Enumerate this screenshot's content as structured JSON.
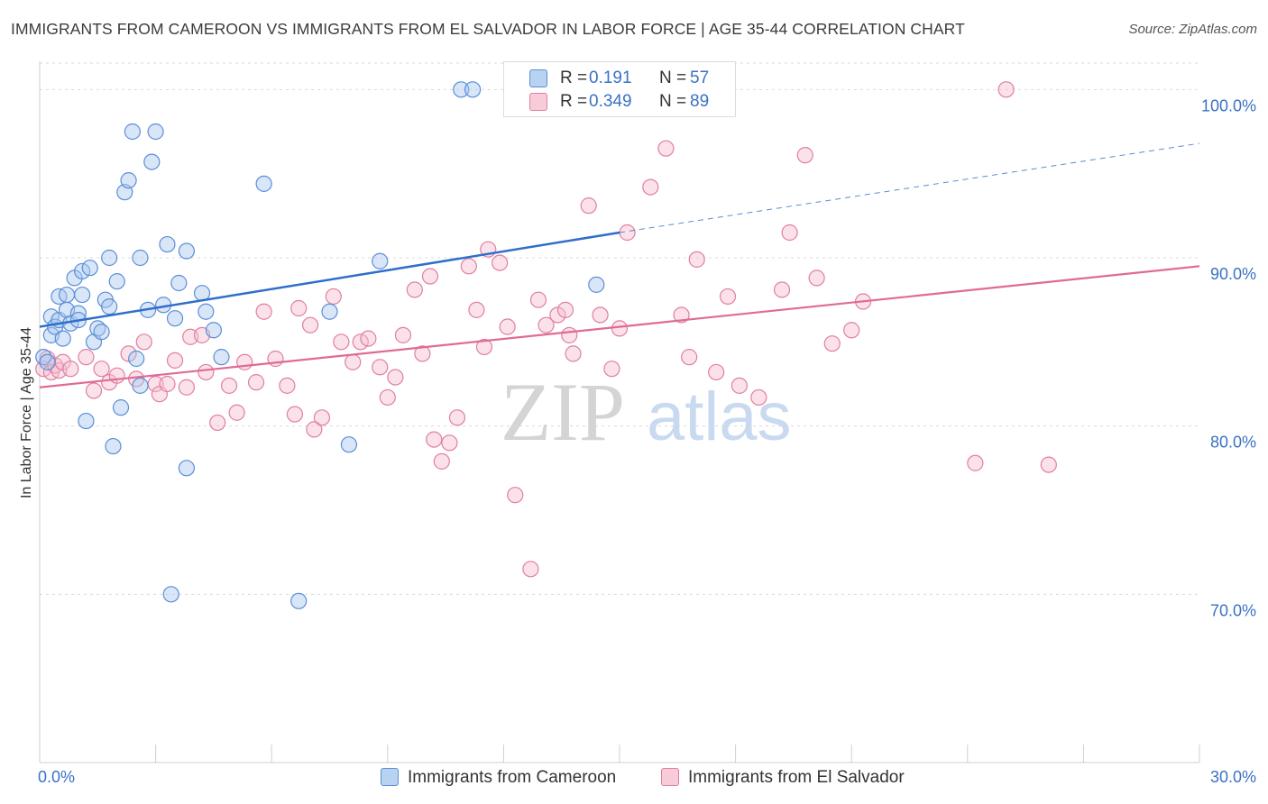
{
  "colors": {
    "blue_fill": "#a8c8f0",
    "blue_stroke": "#5b8fd6",
    "blue_line": "#2f6fc9",
    "pink_fill": "#f6bfd0",
    "pink_stroke": "#e07fa0",
    "pink_line": "#e06a95",
    "axis_text": "#3a72c4",
    "grid": "#d9d9d9"
  },
  "header": {
    "title": "IMMIGRANTS FROM CAMEROON VS IMMIGRANTS FROM EL SALVADOR IN LABOR FORCE | AGE 35-44 CORRELATION CHART",
    "source": "Source: ZipAtlas.com"
  },
  "watermark": {
    "zip": "ZIP",
    "atlas": "atlas"
  },
  "legend_top": [
    {
      "r_label": "R =",
      "r_value": "0.191",
      "n_label": "N =",
      "n_value": "57"
    },
    {
      "r_label": "R =",
      "r_value": "0.349",
      "n_label": "N =",
      "n_value": "89"
    }
  ],
  "chart_data": {
    "type": "scatter",
    "title": "IMMIGRANTS FROM CAMEROON VS IMMIGRANTS FROM EL SALVADOR IN LABOR FORCE | AGE 35-44 CORRELATION CHART",
    "xlabel": "",
    "ylabel": "In Labor Force | Age 35-44",
    "xlim": [
      0,
      30
    ],
    "ylim": [
      60,
      102
    ],
    "x_tick_labels": [
      "0.0%",
      "30.0%"
    ],
    "y_ticks": [
      70,
      80,
      90,
      100
    ],
    "y_tick_labels": [
      "70.0%",
      "80.0%",
      "90.0%",
      "100.0%"
    ],
    "grid": true,
    "legend_position": "bottom",
    "series": [
      {
        "name": "Immigrants from Cameroon",
        "R": 0.191,
        "N": 57,
        "trend": {
          "x0": 0.0,
          "y0": 85.9,
          "x1": 15.0,
          "y1": 91.5,
          "dashed_to_x": 30.0,
          "dashed_to_y": 96.8
        },
        "points": [
          [
            0.1,
            84.1
          ],
          [
            0.2,
            83.8
          ],
          [
            0.3,
            85.4
          ],
          [
            0.3,
            86.5
          ],
          [
            0.4,
            85.9
          ],
          [
            0.5,
            87.7
          ],
          [
            0.5,
            86.3
          ],
          [
            0.6,
            85.2
          ],
          [
            0.7,
            87.8
          ],
          [
            0.7,
            86.9
          ],
          [
            0.8,
            86.1
          ],
          [
            0.9,
            88.8
          ],
          [
            1.0,
            86.7
          ],
          [
            1.0,
            86.3
          ],
          [
            1.1,
            87.8
          ],
          [
            1.1,
            89.2
          ],
          [
            1.2,
            80.3
          ],
          [
            1.3,
            89.4
          ],
          [
            1.4,
            85.0
          ],
          [
            1.5,
            85.8
          ],
          [
            1.6,
            85.6
          ],
          [
            1.7,
            87.5
          ],
          [
            1.8,
            90.0
          ],
          [
            1.8,
            87.1
          ],
          [
            1.9,
            78.8
          ],
          [
            2.0,
            88.6
          ],
          [
            2.1,
            81.1
          ],
          [
            2.2,
            93.9
          ],
          [
            2.3,
            94.6
          ],
          [
            2.4,
            97.5
          ],
          [
            2.5,
            84.0
          ],
          [
            2.6,
            82.4
          ],
          [
            2.6,
            90.0
          ],
          [
            2.8,
            86.9
          ],
          [
            2.9,
            95.7
          ],
          [
            3.0,
            97.5
          ],
          [
            3.2,
            87.2
          ],
          [
            3.3,
            90.8
          ],
          [
            3.4,
            70.0
          ],
          [
            3.5,
            86.4
          ],
          [
            3.6,
            88.5
          ],
          [
            3.8,
            90.4
          ],
          [
            3.8,
            77.5
          ],
          [
            4.2,
            87.9
          ],
          [
            4.3,
            86.8
          ],
          [
            4.5,
            85.7
          ],
          [
            4.7,
            84.1
          ],
          [
            5.8,
            94.4
          ],
          [
            6.7,
            69.6
          ],
          [
            7.5,
            86.8
          ],
          [
            8.0,
            78.9
          ],
          [
            8.8,
            89.8
          ],
          [
            10.9,
            100.0
          ],
          [
            11.2,
            100.0
          ],
          [
            14.4,
            88.4
          ]
        ]
      },
      {
        "name": "Immigrants from El Salvador",
        "R": 0.349,
        "N": 89,
        "trend": {
          "x0": 0.0,
          "y0": 82.3,
          "x1": 30.0,
          "y1": 89.5
        },
        "points": [
          [
            0.1,
            83.4
          ],
          [
            0.2,
            84.0
          ],
          [
            0.3,
            83.2
          ],
          [
            0.4,
            83.6
          ],
          [
            0.5,
            83.3
          ],
          [
            0.6,
            83.8
          ],
          [
            0.8,
            83.4
          ],
          [
            1.2,
            84.1
          ],
          [
            1.4,
            82.1
          ],
          [
            1.6,
            83.4
          ],
          [
            1.8,
            82.6
          ],
          [
            2.0,
            83.0
          ],
          [
            2.3,
            84.3
          ],
          [
            2.5,
            82.8
          ],
          [
            2.7,
            85.0
          ],
          [
            3.0,
            82.5
          ],
          [
            3.1,
            81.9
          ],
          [
            3.3,
            82.5
          ],
          [
            3.5,
            83.9
          ],
          [
            3.8,
            82.3
          ],
          [
            3.9,
            85.3
          ],
          [
            4.2,
            85.4
          ],
          [
            4.3,
            83.2
          ],
          [
            4.6,
            80.2
          ],
          [
            4.9,
            82.4
          ],
          [
            5.1,
            80.8
          ],
          [
            5.3,
            83.8
          ],
          [
            5.6,
            82.6
          ],
          [
            5.8,
            86.8
          ],
          [
            6.1,
            84.0
          ],
          [
            6.4,
            82.4
          ],
          [
            6.6,
            80.7
          ],
          [
            6.7,
            87.0
          ],
          [
            7.0,
            86.0
          ],
          [
            7.1,
            79.8
          ],
          [
            7.3,
            80.5
          ],
          [
            7.6,
            87.7
          ],
          [
            7.8,
            85.0
          ],
          [
            8.1,
            83.8
          ],
          [
            8.3,
            85.0
          ],
          [
            8.5,
            85.2
          ],
          [
            8.8,
            83.5
          ],
          [
            9.0,
            81.7
          ],
          [
            9.2,
            82.9
          ],
          [
            9.4,
            85.4
          ],
          [
            9.7,
            88.1
          ],
          [
            9.9,
            84.3
          ],
          [
            10.1,
            88.9
          ],
          [
            10.2,
            79.2
          ],
          [
            10.4,
            77.9
          ],
          [
            10.6,
            79.0
          ],
          [
            10.8,
            80.5
          ],
          [
            11.1,
            89.5
          ],
          [
            11.3,
            86.9
          ],
          [
            11.5,
            84.7
          ],
          [
            11.6,
            90.5
          ],
          [
            11.9,
            89.7
          ],
          [
            12.1,
            85.9
          ],
          [
            12.3,
            75.9
          ],
          [
            12.7,
            71.5
          ],
          [
            12.9,
            87.5
          ],
          [
            13.1,
            86.0
          ],
          [
            13.4,
            86.6
          ],
          [
            13.6,
            86.9
          ],
          [
            13.7,
            85.4
          ],
          [
            13.8,
            84.3
          ],
          [
            14.2,
            93.1
          ],
          [
            14.5,
            86.6
          ],
          [
            14.8,
            83.4
          ],
          [
            15.0,
            85.8
          ],
          [
            15.2,
            91.5
          ],
          [
            15.8,
            94.2
          ],
          [
            16.2,
            96.5
          ],
          [
            16.6,
            86.6
          ],
          [
            16.8,
            84.1
          ],
          [
            17.0,
            89.9
          ],
          [
            17.5,
            83.2
          ],
          [
            17.8,
            87.7
          ],
          [
            18.1,
            82.4
          ],
          [
            18.6,
            81.7
          ],
          [
            19.2,
            88.1
          ],
          [
            19.4,
            91.5
          ],
          [
            19.8,
            96.1
          ],
          [
            20.1,
            88.8
          ],
          [
            20.5,
            84.9
          ],
          [
            21.0,
            85.7
          ],
          [
            21.3,
            87.4
          ],
          [
            24.2,
            77.8
          ],
          [
            25.0,
            100.0
          ],
          [
            26.1,
            77.7
          ]
        ]
      }
    ]
  }
}
